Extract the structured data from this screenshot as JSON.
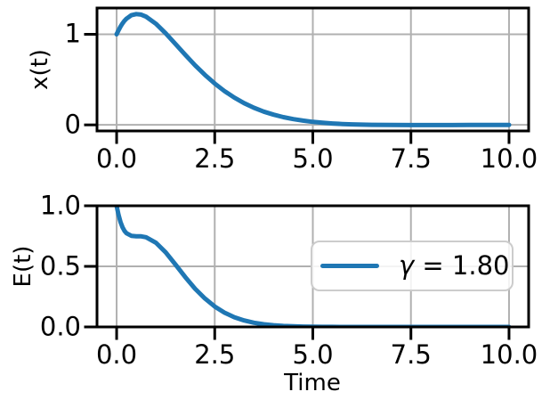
{
  "figure": {
    "background": "#ffffff",
    "line_color": "#1f77b4",
    "grid_color": "#b0b0b0",
    "spine_color": "#000000",
    "legend_edge_color": "#cccccc"
  },
  "chart_data": [
    {
      "type": "line",
      "ylabel": "x(t)",
      "xlim": [
        -0.5,
        10.5
      ],
      "ylim": [
        -0.067,
        1.29
      ],
      "grid": true,
      "xticks": {
        "values": [
          0,
          2.5,
          5,
          7.5,
          10
        ],
        "labels": [
          "0.0",
          "2.5",
          "5.0",
          "7.5",
          "10.0"
        ]
      },
      "yticks": {
        "values": [
          0,
          1
        ],
        "labels": [
          "0",
          "1"
        ]
      },
      "series": [
        {
          "name": "x(t)",
          "color": "#1f77b4",
          "x": [
            0,
            0.05,
            0.1,
            0.15,
            0.2,
            0.25,
            0.375,
            0.5,
            0.625,
            0.75,
            1,
            1.25,
            1.5,
            1.75,
            2,
            2.25,
            2.5,
            2.75,
            3,
            3.25,
            3.5,
            3.75,
            4,
            4.25,
            4.5,
            4.75,
            5,
            5.25,
            5.5,
            5.75,
            6,
            6.5,
            7,
            7.5,
            8,
            9,
            10
          ],
          "y": [
            1,
            1.0466,
            1.0867,
            1.1207,
            1.1491,
            1.1723,
            1.2102,
            1.2235,
            1.217,
            1.195,
            1.1169,
            1.0111,
            0.8932,
            0.7729,
            0.6579,
            0.5517,
            0.4563,
            0.3724,
            0.3004,
            0.2394,
            0.1885,
            0.1467,
            0.1126,
            0.0854,
            0.0635,
            0.0466,
            0.0334,
            0.0233,
            0.0157,
            0.01,
            0.006,
            0.0011,
            -0.0011,
            -0.0018,
            -0.0018,
            -0.0012,
            -0.0005
          ]
        }
      ]
    },
    {
      "type": "line",
      "xlabel": "Time",
      "ylabel": "E(t)",
      "xlim": [
        -0.5,
        10.5
      ],
      "ylim": [
        0,
        1
      ],
      "grid": true,
      "xticks": {
        "values": [
          0,
          2.5,
          5,
          7.5,
          10
        ],
        "labels": [
          "0.0",
          "2.5",
          "5.0",
          "7.5",
          "10.0"
        ]
      },
      "yticks": {
        "values": [
          0,
          0.5,
          1
        ],
        "labels": [
          "0.0",
          "0.5",
          "1.0"
        ]
      },
      "legend": {
        "label": "γ = 1.80",
        "symbol": "γ",
        "value_text": " = 1.80",
        "position": "center right"
      },
      "series": [
        {
          "name": "γ = 1.80",
          "color": "#1f77b4",
          "x": [
            0,
            0.05,
            0.1,
            0.15,
            0.2,
            0.25,
            0.375,
            0.5,
            0.625,
            0.75,
            1,
            1.25,
            1.5,
            1.75,
            2,
            2.25,
            2.5,
            2.75,
            3,
            3.25,
            3.5,
            3.75,
            4,
            4.25,
            4.5,
            4.75,
            5,
            5.25,
            5.5,
            5.75,
            6,
            6.5,
            7,
            7.5,
            8,
            9,
            10
          ],
          "y": [
            1,
            0.9217,
            0.8638,
            0.822,
            0.7929,
            0.7733,
            0.7519,
            0.7487,
            0.7477,
            0.7406,
            0.6958,
            0.6151,
            0.5149,
            0.4109,
            0.3156,
            0.2342,
            0.1686,
            0.1179,
            0.0803,
            0.0535,
            0.0348,
            0.0222,
            0.0138,
            0.0084,
            0.005,
            0.0029,
            0.0016,
            0.0009,
            0.0005,
            0.0002,
            0.0001,
            0,
            0,
            0,
            0,
            0,
            0
          ]
        }
      ]
    }
  ]
}
